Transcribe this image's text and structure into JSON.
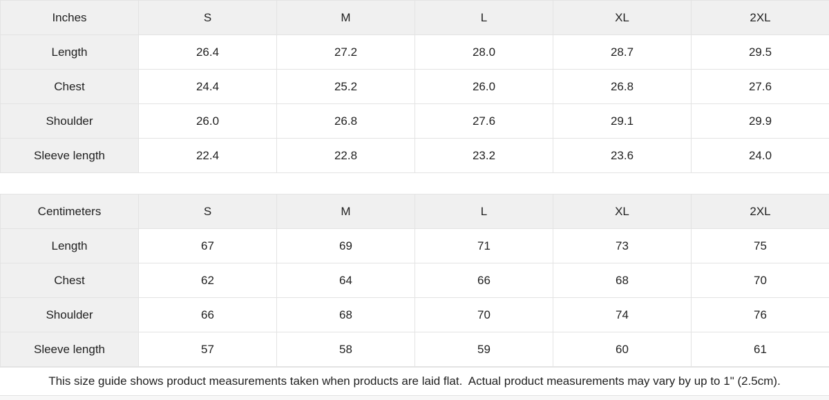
{
  "colors": {
    "header_cell_bg": "#f0f0f0",
    "value_cell_bg": "#ffffff",
    "border": "#e3e3e3",
    "text": "#1f1f1f"
  },
  "tables": [
    {
      "unit_label": "Inches",
      "columns": [
        "S",
        "M",
        "L",
        "XL",
        "2XL"
      ],
      "rows": [
        {
          "label": "Length",
          "values": [
            "26.4",
            "27.2",
            "28.0",
            "28.7",
            "29.5"
          ]
        },
        {
          "label": "Chest",
          "values": [
            "24.4",
            "25.2",
            "26.0",
            "26.8",
            "27.6"
          ]
        },
        {
          "label": "Shoulder",
          "values": [
            "26.0",
            "26.8",
            "27.6",
            "29.1",
            "29.9"
          ]
        },
        {
          "label": "Sleeve length",
          "values": [
            "22.4",
            "22.8",
            "23.2",
            "23.6",
            "24.0"
          ]
        }
      ]
    },
    {
      "unit_label": "Centimeters",
      "columns": [
        "S",
        "M",
        "L",
        "XL",
        "2XL"
      ],
      "rows": [
        {
          "label": "Length",
          "values": [
            "67",
            "69",
            "71",
            "73",
            "75"
          ]
        },
        {
          "label": "Chest",
          "values": [
            "62",
            "64",
            "66",
            "68",
            "70"
          ]
        },
        {
          "label": "Shoulder",
          "values": [
            "66",
            "68",
            "70",
            "74",
            "76"
          ]
        },
        {
          "label": "Sleeve length",
          "values": [
            "57",
            "58",
            "59",
            "60",
            "61"
          ]
        }
      ]
    }
  ],
  "footer_note": "This size guide shows product measurements taken when products are laid flat.  Actual product measurements may vary by up to 1\" (2.5cm)."
}
